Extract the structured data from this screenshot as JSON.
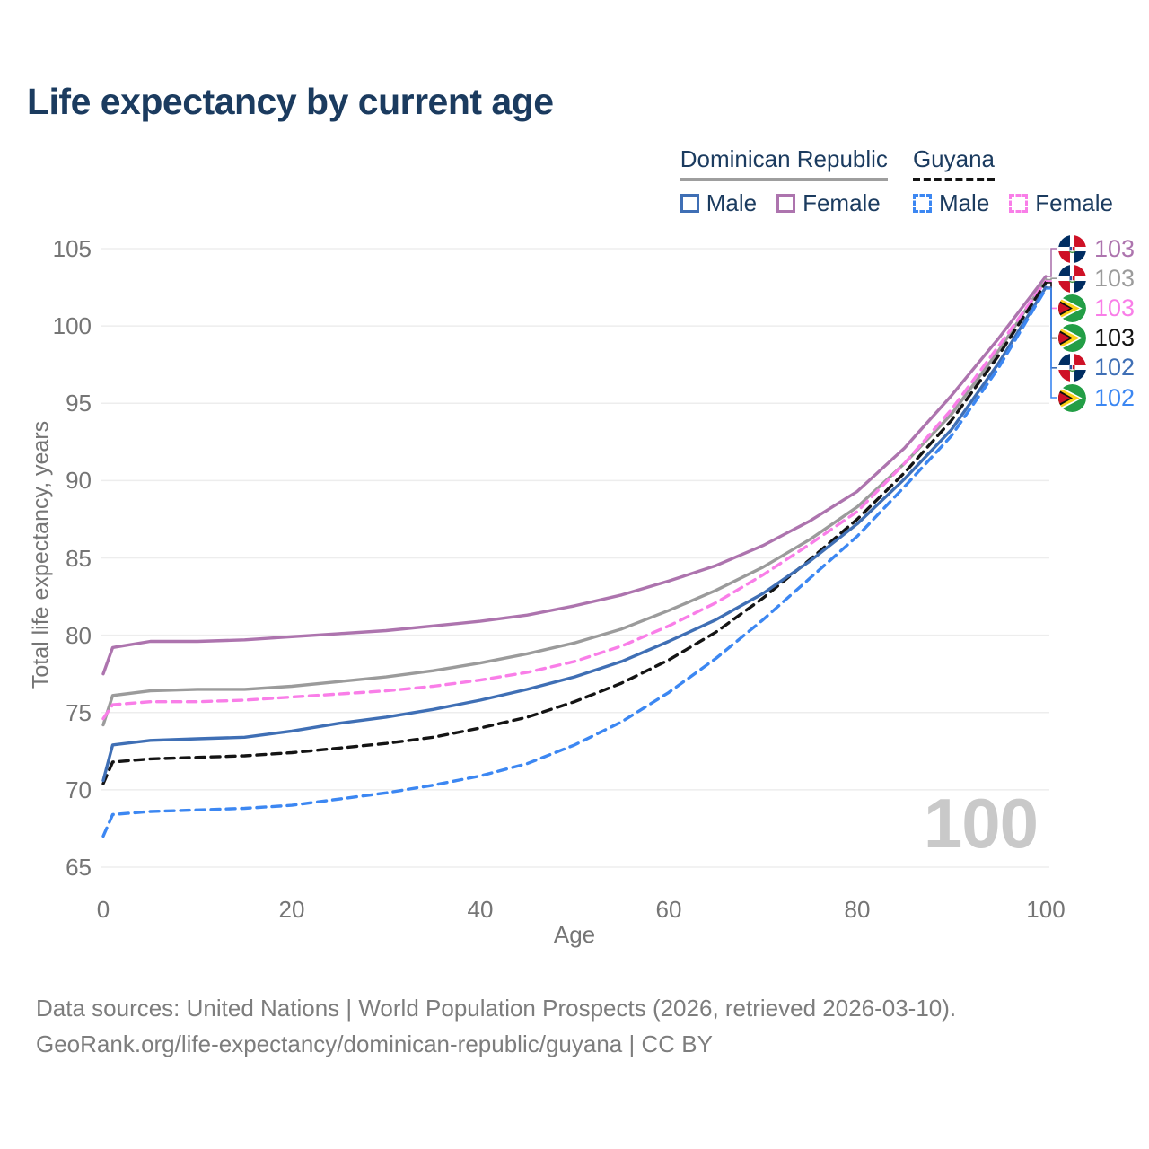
{
  "page": {
    "title": "Life expectancy by current age",
    "watermark_age": "100",
    "footer_line1": "Data sources: United Nations | World Population Prospects (2026, retrieved 2026-03-10).",
    "footer_line2": "GeoRank.org/life-expectancy/dominican-republic/guyana | CC BY"
  },
  "legend": {
    "groups": [
      {
        "label": "Dominican Republic",
        "underline_color": "#9e9e9e",
        "underline_style": "solid",
        "items": [
          {
            "label": "Male",
            "color": "#3f6fb5",
            "style": "solid"
          },
          {
            "label": "Female",
            "color": "#ad74ae",
            "style": "solid"
          }
        ]
      },
      {
        "label": "Guyana",
        "underline_color": "#141414",
        "underline_style": "dashed",
        "items": [
          {
            "label": "Male",
            "color": "#3c87f2",
            "style": "dashed"
          },
          {
            "label": "Female",
            "color": "#f97ee8",
            "style": "dashed"
          }
        ]
      }
    ]
  },
  "chart_data": {
    "type": "line",
    "title": "Life expectancy by current age",
    "xlabel": "Age",
    "ylabel": "Total life expectancy, years",
    "xlim": [
      0,
      100
    ],
    "ylim": [
      65,
      105
    ],
    "xticks": [
      0,
      20,
      40,
      60,
      80,
      100
    ],
    "yticks": [
      65,
      70,
      75,
      80,
      85,
      90,
      95,
      100,
      105
    ],
    "grid": true,
    "legend_position": "top-right",
    "hover_age_indicator": "100",
    "ages": [
      0,
      1,
      5,
      10,
      15,
      20,
      25,
      30,
      35,
      40,
      45,
      50,
      55,
      60,
      65,
      70,
      75,
      80,
      85,
      90,
      95,
      100
    ],
    "series": [
      {
        "key": "dominican-republic-female",
        "name": "Dominican Republic — Female",
        "country": "Dominican Republic",
        "flag": "flag-dr",
        "color": "#ad74ae",
        "style": "solid",
        "end_label": "103",
        "values": [
          77.5,
          79.2,
          79.6,
          79.6,
          79.7,
          79.9,
          80.1,
          80.3,
          80.6,
          80.9,
          81.3,
          81.9,
          82.6,
          83.5,
          84.5,
          85.8,
          87.4,
          89.3,
          92.1,
          95.5,
          99.2,
          103.2
        ]
      },
      {
        "key": "dominican-republic-all",
        "name": "Dominican Republic — Both sexes",
        "country": "Dominican Republic",
        "flag": "flag-dr",
        "color": "#9b9b9b",
        "style": "solid",
        "end_label": "103",
        "values": [
          74.2,
          76.1,
          76.4,
          76.5,
          76.5,
          76.7,
          77.0,
          77.3,
          77.7,
          78.2,
          78.8,
          79.5,
          80.4,
          81.6,
          82.9,
          84.4,
          86.2,
          88.3,
          91.1,
          94.3,
          98.4,
          103.0
        ]
      },
      {
        "key": "guyana-female",
        "name": "Guyana — Female",
        "country": "Guyana",
        "flag": "flag-gy",
        "color": "#f97ee8",
        "style": "dashed",
        "end_label": "103",
        "values": [
          74.6,
          75.5,
          75.7,
          75.7,
          75.8,
          76.0,
          76.2,
          76.4,
          76.7,
          77.1,
          77.6,
          78.3,
          79.3,
          80.6,
          82.1,
          83.9,
          85.9,
          88.0,
          91.1,
          94.6,
          98.7,
          102.9
        ]
      },
      {
        "key": "guyana-all",
        "name": "Guyana — Both sexes",
        "country": "Guyana",
        "flag": "flag-gy",
        "color": "#141414",
        "style": "dashed",
        "end_label": "103",
        "values": [
          70.4,
          71.8,
          72.0,
          72.1,
          72.2,
          72.4,
          72.7,
          73.0,
          73.4,
          74.0,
          74.7,
          75.7,
          76.9,
          78.4,
          80.2,
          82.4,
          84.9,
          87.5,
          90.5,
          93.9,
          98.1,
          102.8
        ]
      },
      {
        "key": "dominican-republic-male",
        "name": "Dominican Republic — Male",
        "country": "Dominican Republic",
        "flag": "flag-dr",
        "color": "#3f6fb5",
        "style": "solid",
        "end_label": "102",
        "values": [
          70.6,
          72.9,
          73.2,
          73.3,
          73.4,
          73.8,
          74.3,
          74.7,
          75.2,
          75.8,
          76.5,
          77.3,
          78.3,
          79.6,
          81.0,
          82.7,
          84.8,
          87.2,
          90.1,
          93.3,
          97.6,
          102.5
        ]
      },
      {
        "key": "guyana-male",
        "name": "Guyana — Male",
        "country": "Guyana",
        "flag": "flag-gy",
        "color": "#3c87f2",
        "style": "dashed",
        "end_label": "102",
        "values": [
          67.0,
          68.4,
          68.6,
          68.7,
          68.8,
          69.0,
          69.4,
          69.8,
          70.3,
          70.9,
          71.7,
          72.9,
          74.4,
          76.3,
          78.5,
          81.0,
          83.7,
          86.4,
          89.6,
          92.9,
          97.3,
          102.4
        ]
      }
    ]
  }
}
